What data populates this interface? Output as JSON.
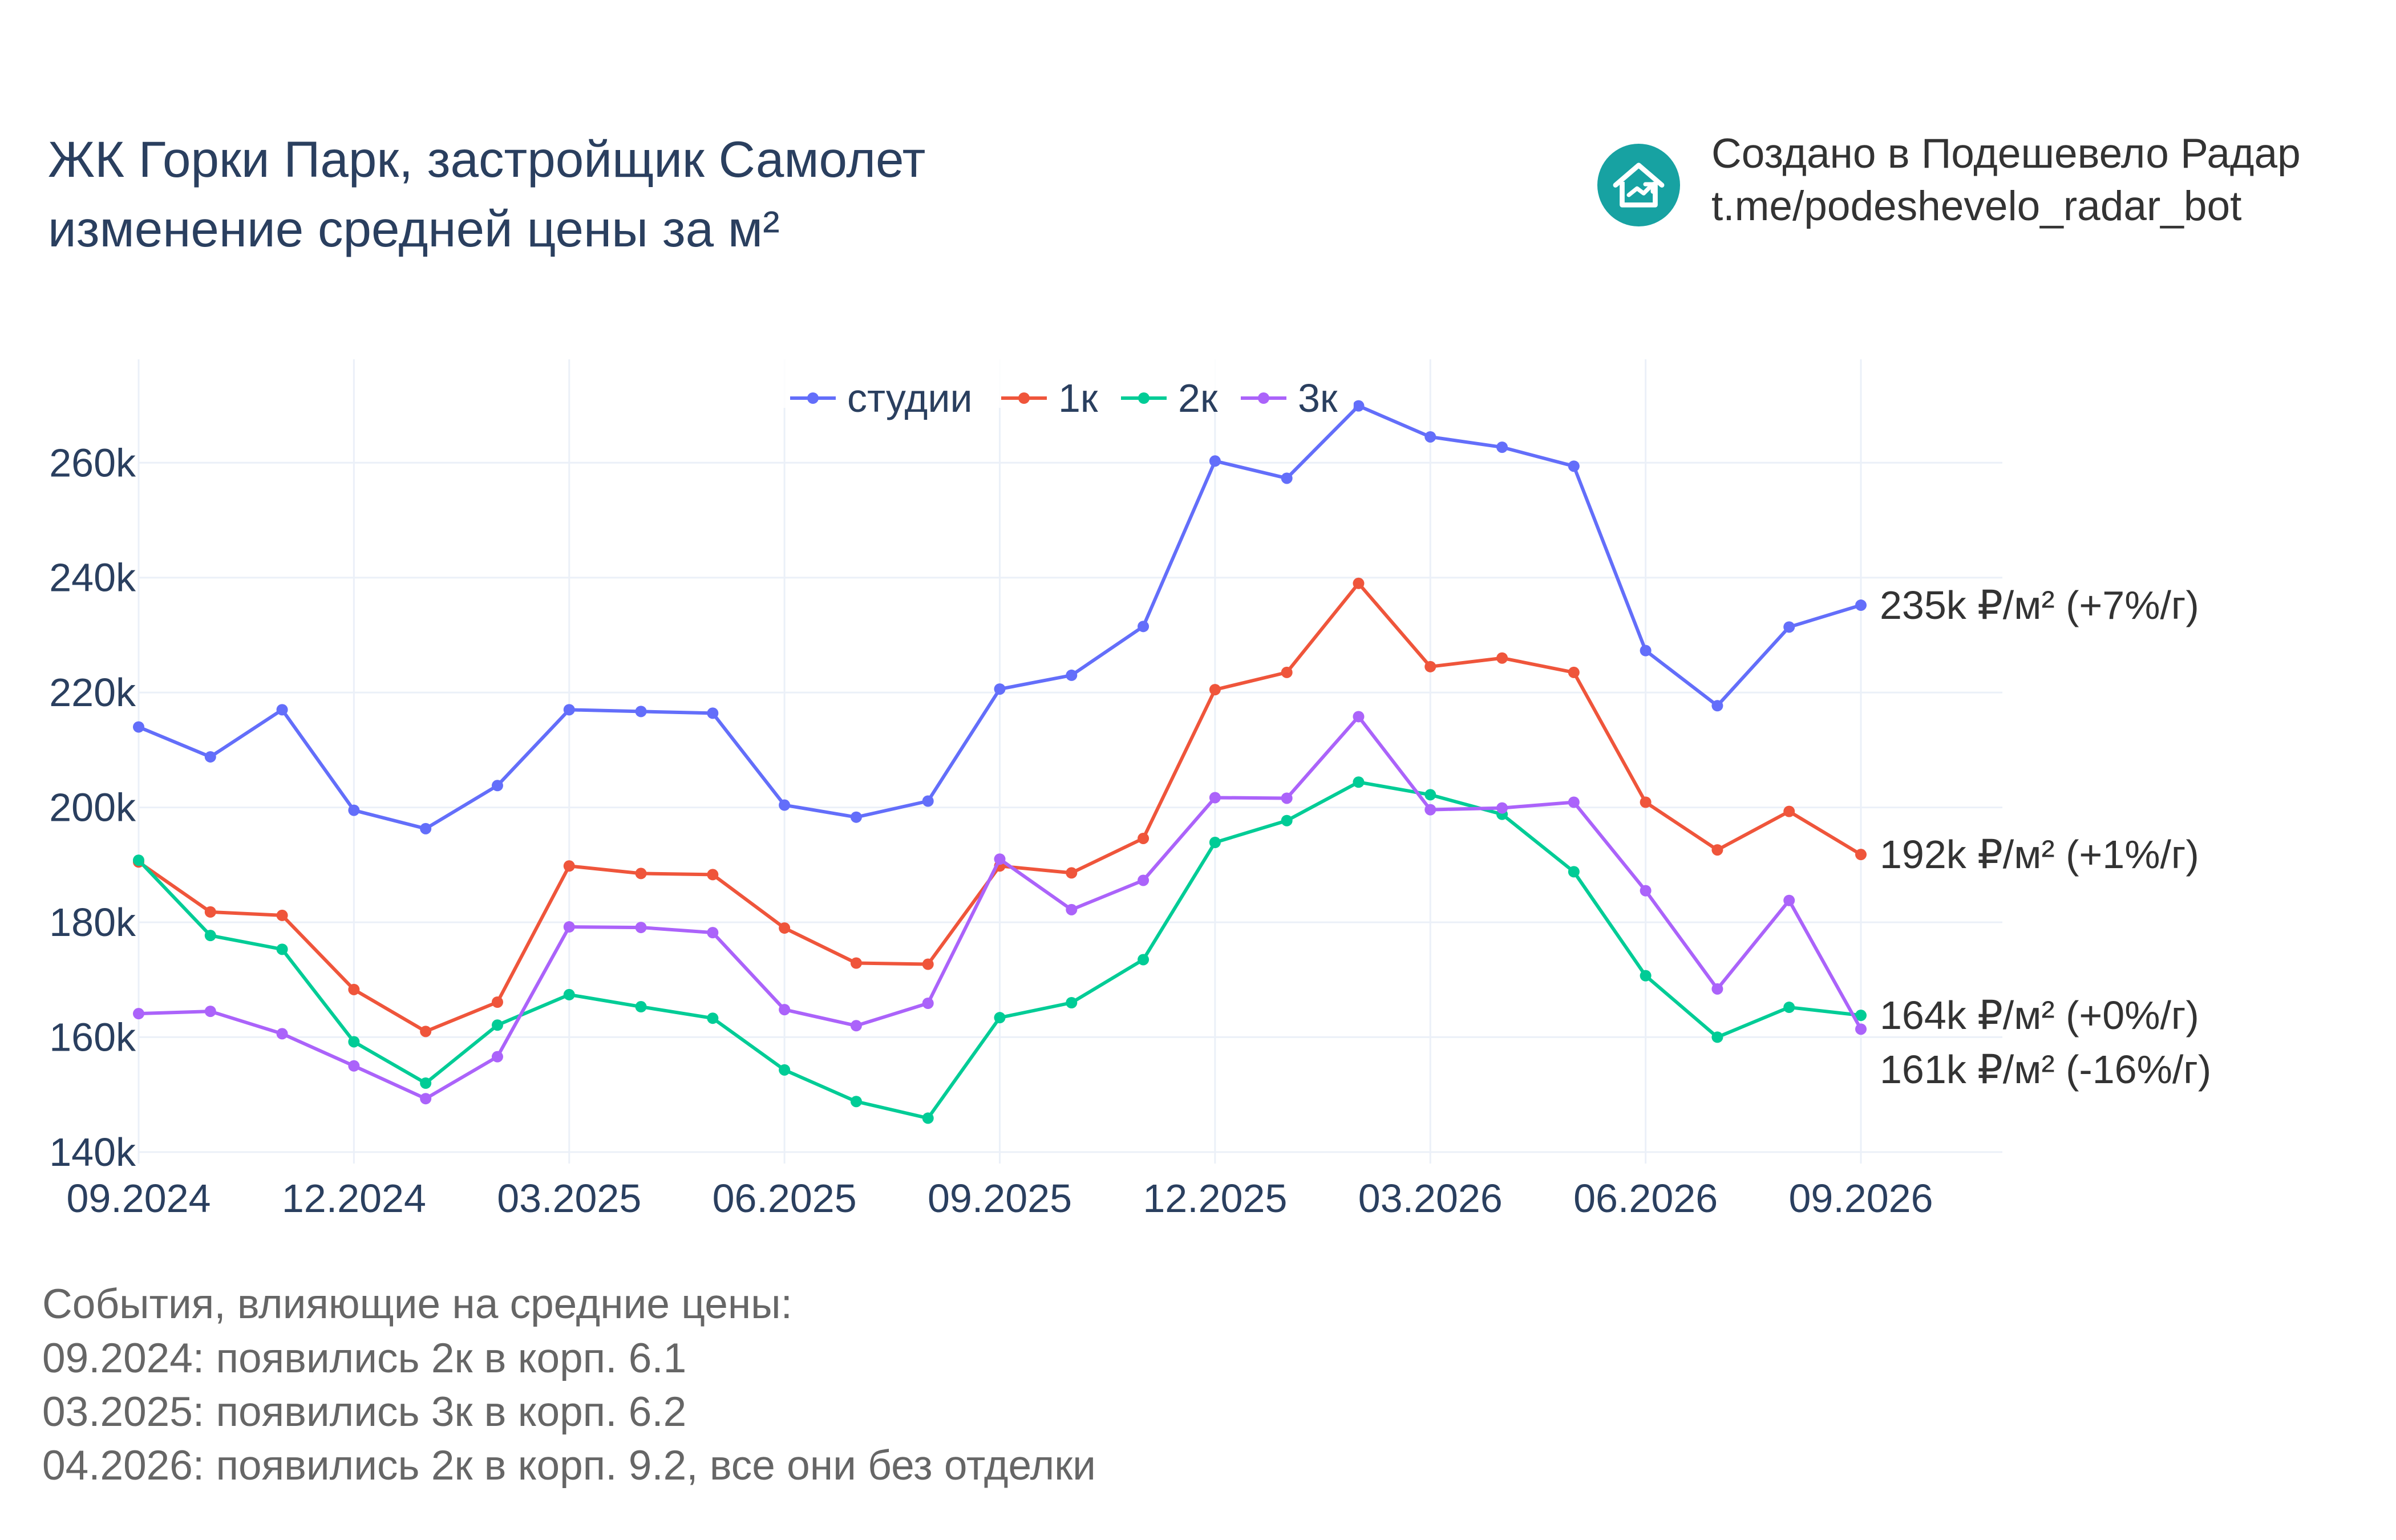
{
  "title": {
    "line1": "ЖК Горки Парк, застройщик Самолет",
    "line2": "изменение средней цены за м²"
  },
  "credit": {
    "line1": "Создано в Подешевело Радар",
    "line2": "t.me/podeshevelo_radar_bot",
    "logo_icon": "house-arrow-icon",
    "logo_color": "#17a2a2"
  },
  "events": {
    "heading": "События, влияющие на средние цены:",
    "items": [
      "09.2024: появились 2к в корп. 6.1",
      "03.2025: появились 3к в корп. 6.2",
      "04.2026: появились 2к в корп. 9.2, все они без отделки"
    ]
  },
  "chart_data": {
    "type": "line",
    "x": [
      "09.2024",
      "10.2024",
      "11.2024",
      "12.2024",
      "01.2025",
      "02.2025",
      "03.2025",
      "04.2025",
      "05.2025",
      "06.2025",
      "07.2025",
      "08.2025",
      "09.2025",
      "10.2025",
      "11.2025",
      "12.2025",
      "01.2026",
      "02.2026",
      "03.2026",
      "04.2026",
      "05.2026",
      "06.2026",
      "07.2026",
      "08.2026",
      "09.2026"
    ],
    "x_ticks": [
      "09.2024",
      "12.2024",
      "03.2025",
      "06.2025",
      "09.2025",
      "12.2025",
      "03.2026",
      "06.2026",
      "09.2026"
    ],
    "y_ticks": [
      "140k",
      "160k",
      "180k",
      "200k",
      "220k",
      "240k",
      "260k"
    ],
    "y_tick_values": [
      140000,
      160000,
      180000,
      200000,
      220000,
      240000,
      260000
    ],
    "ylim": [
      138000,
      278000
    ],
    "grid": true,
    "legend_position": "top-center",
    "series": [
      {
        "name": "студии",
        "color": "#636efa",
        "values": [
          214000,
          208800,
          217000,
          199500,
          196300,
          203800,
          217000,
          216700,
          216400,
          200400,
          198300,
          201100,
          220600,
          223000,
          231500,
          260300,
          257300,
          269900,
          264500,
          262700,
          259400,
          227300,
          217700,
          231400,
          235200
        ],
        "end_label": "235k ₽/м² (+7%/г)"
      },
      {
        "name": "1к",
        "color": "#ef553b",
        "values": [
          190500,
          181800,
          181200,
          168300,
          161000,
          166100,
          189800,
          188500,
          188300,
          179000,
          172900,
          172700,
          189800,
          188600,
          194600,
          220500,
          223500,
          239000,
          224500,
          226000,
          223500,
          200900,
          192600,
          199300,
          191800
        ],
        "end_label": "192k ₽/м² (+1%/г)"
      },
      {
        "name": "2к",
        "color": "#00cc96",
        "values": [
          190800,
          177700,
          175300,
          159200,
          152000,
          162100,
          167400,
          165300,
          163300,
          154300,
          148800,
          145900,
          163400,
          166000,
          173500,
          193900,
          197700,
          204400,
          202200,
          198800,
          188800,
          170700,
          160000,
          165200,
          163800
        ],
        "end_label": "164k ₽/м² (+0%/г)"
      },
      {
        "name": "3к",
        "color": "#ab63fa",
        "values": [
          164100,
          164500,
          160600,
          155000,
          149300,
          156600,
          179200,
          179100,
          178200,
          164800,
          162000,
          165900,
          191000,
          182200,
          187300,
          201700,
          201600,
          215800,
          199600,
          199900,
          200900,
          185500,
          168400,
          183800,
          161400
        ],
        "end_label": "161k ₽/м² (-16%/г)"
      }
    ]
  }
}
